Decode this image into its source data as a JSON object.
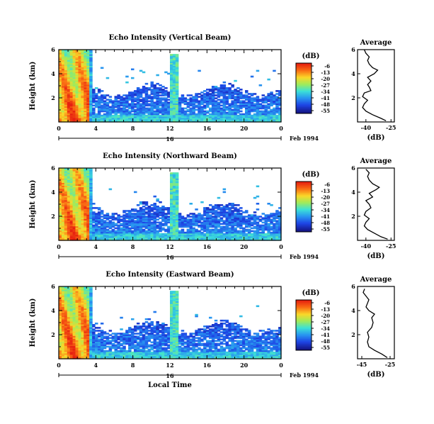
{
  "chart_data": [
    {
      "type": "heatmap",
      "title": "Echo Intensity (Vertical Beam)",
      "ylabel": "Height (km)",
      "xlim": [
        0,
        24
      ],
      "ylim": [
        0,
        6
      ],
      "x_ticks": [
        "0",
        "4",
        "8",
        "12",
        "16",
        "20",
        "0"
      ],
      "y_ticks": [
        "2",
        "4",
        "6"
      ],
      "day_label": "16",
      "date_label": "Feb 1994",
      "colorbar": {
        "unit": "(dB)",
        "ticks": [
          "-6",
          "-13",
          "-20",
          "-27",
          "-34",
          "-41",
          "-48",
          "-55"
        ]
      },
      "average": {
        "title": "Average",
        "xlabel": "(dB)",
        "x_ticks": [
          "-40",
          "-25"
        ],
        "xlim": [
          -45,
          -23
        ],
        "profile": [
          [
            -28,
            0.1
          ],
          [
            -31,
            0.3
          ],
          [
            -36,
            0.6
          ],
          [
            -40,
            0.9
          ],
          [
            -42,
            1.2
          ],
          [
            -41,
            1.5
          ],
          [
            -39,
            1.8
          ],
          [
            -42,
            2.1
          ],
          [
            -41,
            2.4
          ],
          [
            -37,
            2.6
          ],
          [
            -38,
            2.9
          ],
          [
            -39,
            3.1
          ],
          [
            -37,
            3.4
          ],
          [
            -39,
            3.7
          ],
          [
            -35,
            4.0
          ],
          [
            -33,
            4.3
          ],
          [
            -36,
            4.5
          ],
          [
            -38,
            4.8
          ],
          [
            -39,
            5.1
          ],
          [
            -38,
            5.4
          ],
          [
            -40,
            5.7
          ],
          [
            -41,
            6.0
          ]
        ]
      }
    },
    {
      "type": "heatmap",
      "title": "Echo Intensity (Northward Beam)",
      "ylabel": "Height (km)",
      "xlim": [
        0,
        24
      ],
      "ylim": [
        0,
        6
      ],
      "x_ticks": [
        "0",
        "4",
        "8",
        "12",
        "16",
        "20",
        "0"
      ],
      "y_ticks": [
        "2",
        "4",
        "6"
      ],
      "day_label": "16",
      "date_label": "Feb 1994",
      "colorbar": {
        "unit": "(dB)",
        "ticks": [
          "-6",
          "-13",
          "-20",
          "-27",
          "-34",
          "-41",
          "-48",
          "-55"
        ]
      },
      "average": {
        "title": "Average",
        "xlabel": "(dB)",
        "x_ticks": [
          "-40",
          "-25"
        ],
        "xlim": [
          -45,
          -23
        ],
        "profile": [
          [
            -27,
            0.1
          ],
          [
            -31,
            0.3
          ],
          [
            -35,
            0.6
          ],
          [
            -39,
            0.9
          ],
          [
            -41,
            1.2
          ],
          [
            -40,
            1.5
          ],
          [
            -38,
            1.8
          ],
          [
            -41,
            2.1
          ],
          [
            -40,
            2.4
          ],
          [
            -37,
            2.7
          ],
          [
            -38,
            3.0
          ],
          [
            -40,
            3.3
          ],
          [
            -36,
            3.6
          ],
          [
            -38,
            3.9
          ],
          [
            -34,
            4.2
          ],
          [
            -32,
            4.4
          ],
          [
            -36,
            4.7
          ],
          [
            -38,
            5.0
          ],
          [
            -39,
            5.3
          ],
          [
            -38,
            5.6
          ],
          [
            -40,
            5.9
          ]
        ]
      }
    },
    {
      "type": "heatmap",
      "title": "Echo Intensity (Eastward Beam)",
      "ylabel": "Height (km)",
      "xlabel": "Local Time",
      "xlim": [
        0,
        24
      ],
      "ylim": [
        0,
        6
      ],
      "x_ticks": [
        "0",
        "4",
        "8",
        "12",
        "16",
        "20",
        "0"
      ],
      "y_ticks": [
        "2",
        "4",
        "6"
      ],
      "day_label": "16",
      "date_label": "Feb 1994",
      "colorbar": {
        "unit": "(dB)",
        "ticks": [
          "-6",
          "-13",
          "-20",
          "-27",
          "-34",
          "-41",
          "-48",
          "-55"
        ]
      },
      "average": {
        "title": "Average",
        "xlabel": "(dB)",
        "x_ticks": [
          "-45",
          "-25"
        ],
        "xlim": [
          -48,
          -22
        ],
        "profile": [
          [
            -27,
            0.1
          ],
          [
            -31,
            0.4
          ],
          [
            -36,
            0.7
          ],
          [
            -40,
            1.0
          ],
          [
            -41,
            1.4
          ],
          [
            -40,
            1.8
          ],
          [
            -41,
            2.2
          ],
          [
            -38,
            2.6
          ],
          [
            -37,
            3.0
          ],
          [
            -38,
            3.4
          ],
          [
            -36,
            3.7
          ],
          [
            -40,
            4.0
          ],
          [
            -42,
            4.3
          ],
          [
            -41,
            4.6
          ],
          [
            -40,
            4.9
          ],
          [
            -42,
            5.2
          ],
          [
            -44,
            5.5
          ],
          [
            -43,
            5.8
          ]
        ]
      }
    }
  ]
}
